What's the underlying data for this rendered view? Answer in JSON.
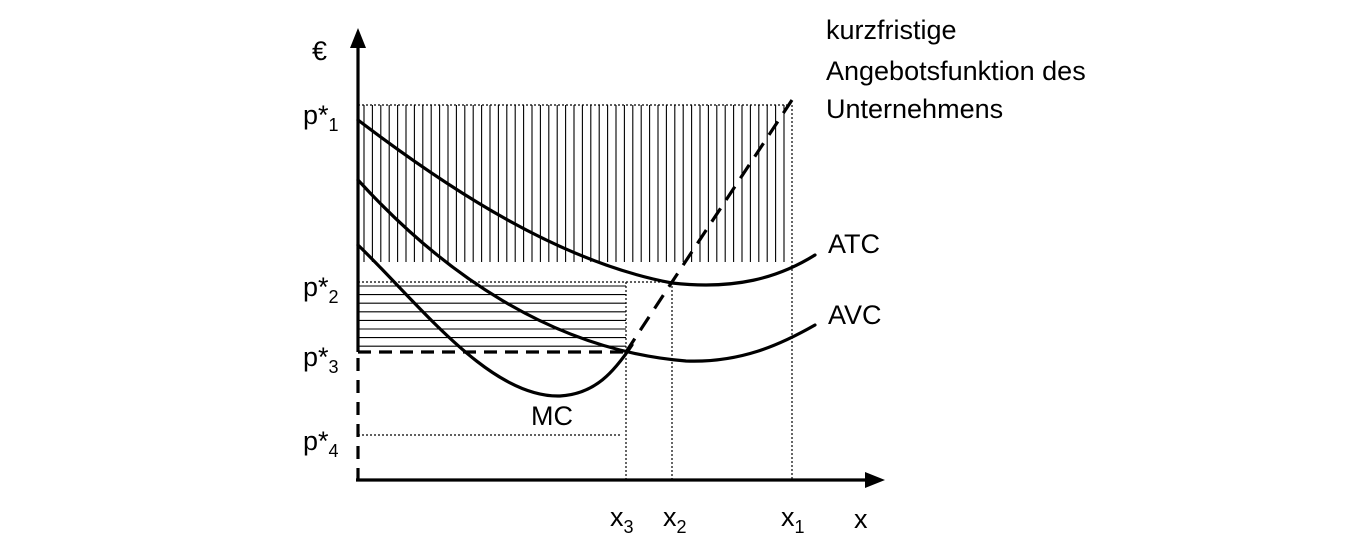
{
  "chart_data": {
    "type": "line",
    "title": "",
    "xlabel": "x",
    "ylabel": "€",
    "x_ticks": [
      {
        "name": "x",
        "sub": "3"
      },
      {
        "name": "x",
        "sub": "2"
      },
      {
        "name": "x",
        "sub": "1"
      }
    ],
    "y_ticks": [
      {
        "name": "p*",
        "sub": "1"
      },
      {
        "name": "p*",
        "sub": "2"
      },
      {
        "name": "p*",
        "sub": "3"
      },
      {
        "name": "p*",
        "sub": "4"
      }
    ],
    "series": [
      {
        "name": "ATC"
      },
      {
        "name": "AVC"
      },
      {
        "name": "MC"
      }
    ],
    "annotations": {
      "supply_line1": "kurzfristige",
      "supply_line2": "Angebotsfunktion des",
      "supply_line3": "Unternehmens"
    },
    "grid": false,
    "legend": "none"
  }
}
